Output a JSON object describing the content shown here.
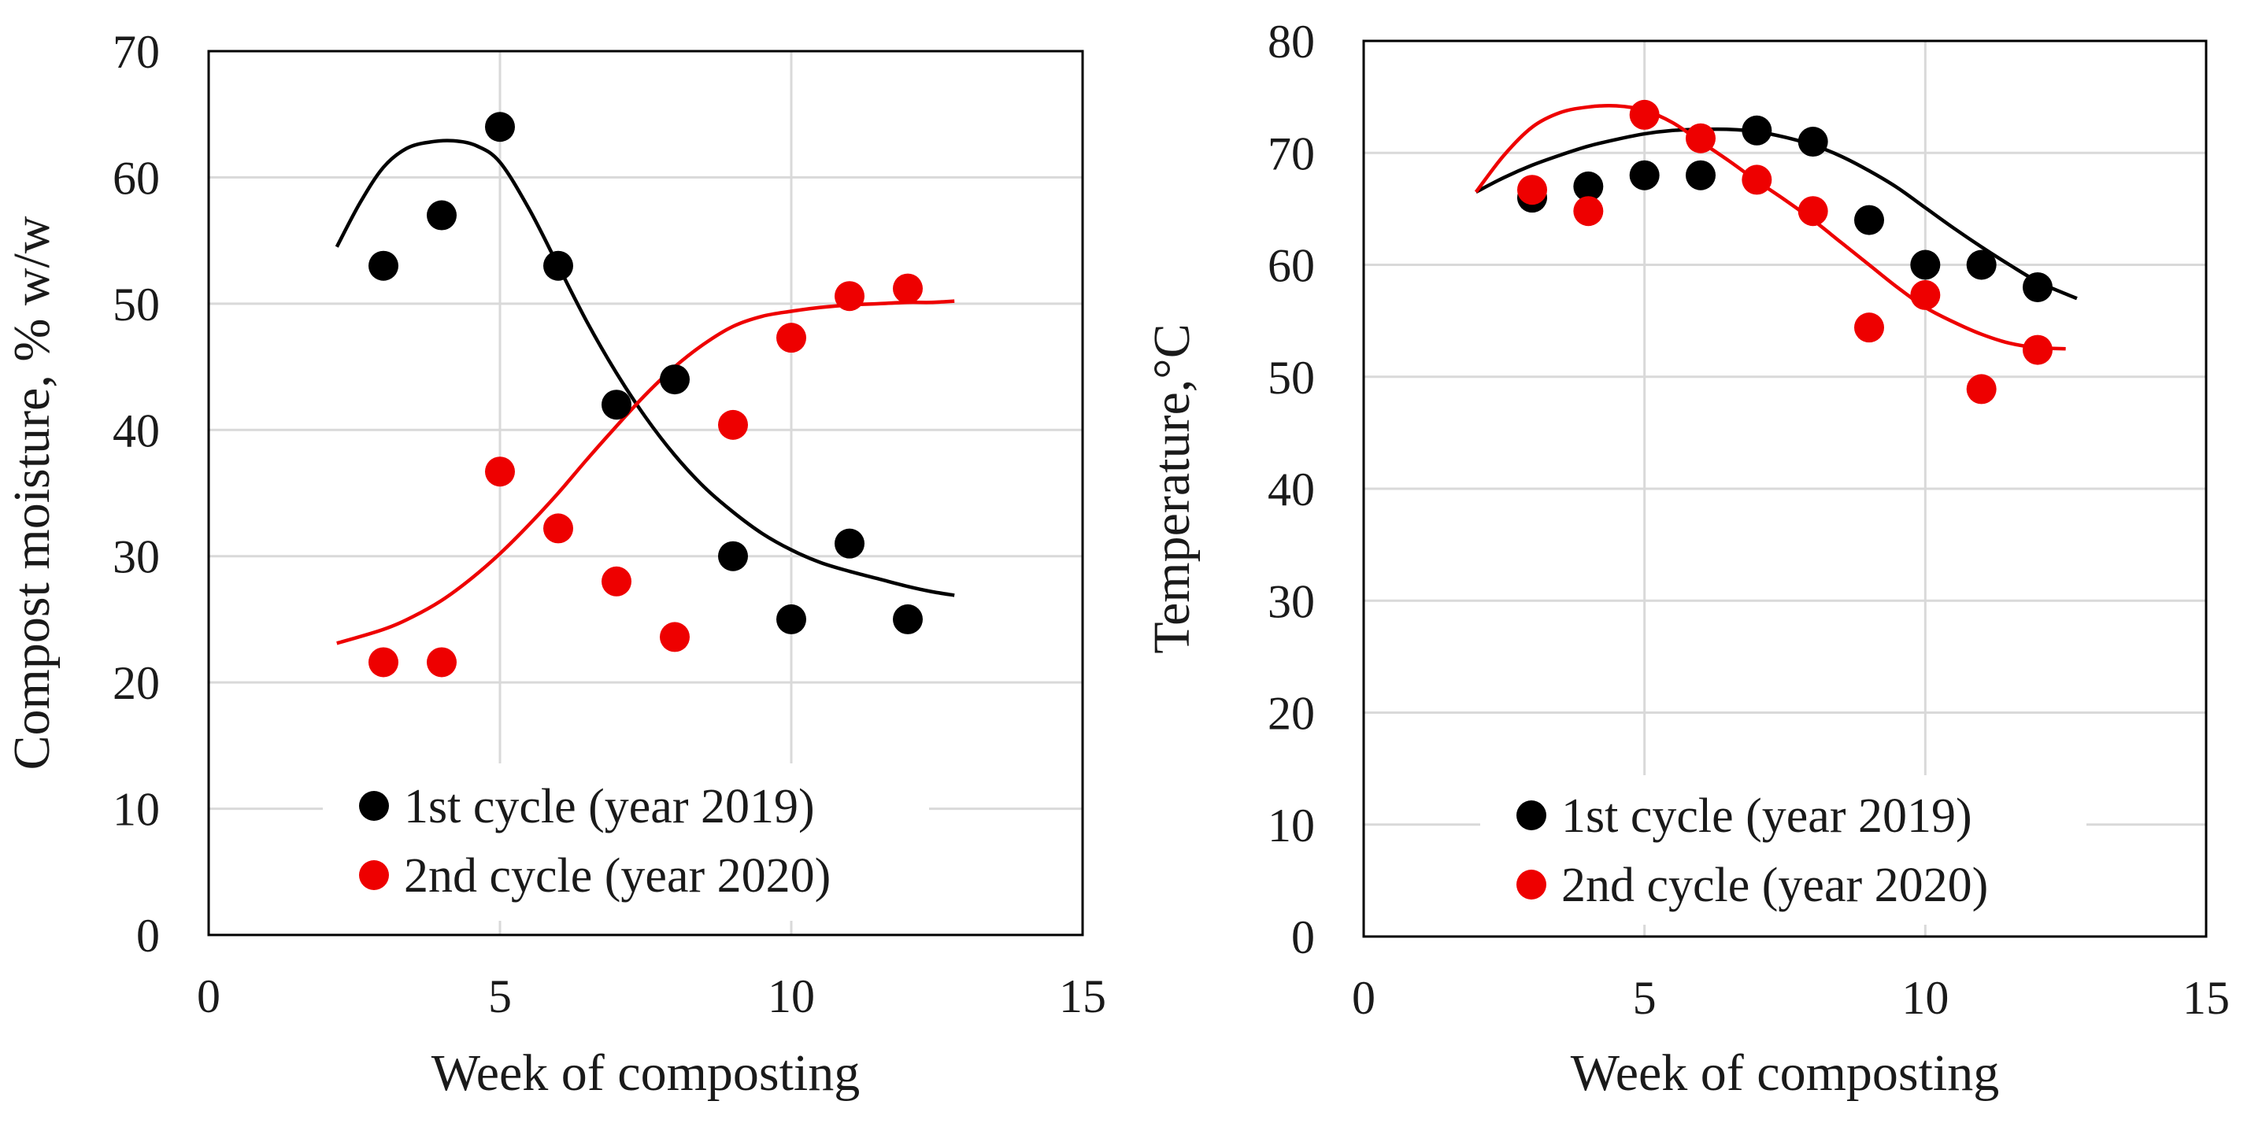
{
  "chart_data": [
    {
      "id": "moisture",
      "type": "scatter",
      "title": "",
      "xlabel": "Week of composting",
      "ylabel": "Compost moisture, % w/w",
      "xlim": [
        0,
        15
      ],
      "ylim": [
        0,
        70
      ],
      "xticks": [
        0,
        5,
        10,
        15
      ],
      "yticks": [
        0,
        10,
        20,
        30,
        40,
        50,
        60,
        70
      ],
      "grid": true,
      "legend_position": "bottom-center",
      "series": [
        {
          "name": "1st cycle (year 2019)",
          "color": "#000000",
          "x": [
            3,
            4,
            5,
            6,
            7,
            8,
            9,
            10,
            11,
            12
          ],
          "y": [
            53,
            57,
            64,
            53,
            42,
            44,
            30,
            25,
            31,
            25
          ],
          "trend": {
            "x": [
              2.2,
              2.6,
              3.0,
              3.4,
              3.8,
              4.2,
              4.6,
              5.0,
              5.5,
              6.0,
              6.5,
              7.0,
              7.5,
              8.0,
              8.5,
              9.0,
              9.5,
              10.0,
              10.5,
              11.0,
              11.5,
              12.0,
              12.4,
              12.8
            ],
            "y": [
              54.5,
              58.0,
              60.8,
              62.3,
              62.8,
              62.9,
              62.5,
              61.2,
              57.5,
              53.0,
              48.5,
              44.5,
              41.0,
              38.0,
              35.5,
              33.5,
              31.8,
              30.5,
              29.5,
              28.8,
              28.2,
              27.6,
              27.2,
              26.9
            ]
          }
        },
        {
          "name": "2nd cycle (year 2020)",
          "color": "#ee0000",
          "x": [
            3,
            4,
            5,
            6,
            7,
            8,
            9,
            10,
            11,
            12
          ],
          "y": [
            21.6,
            21.6,
            36.7,
            32.2,
            28.0,
            23.6,
            40.4,
            47.3,
            50.6,
            51.2
          ],
          "trend": {
            "x": [
              2.2,
              3.0,
              3.5,
              4.0,
              4.5,
              5.0,
              5.5,
              6.0,
              6.5,
              7.0,
              7.5,
              8.0,
              8.5,
              9.0,
              9.5,
              10.0,
              10.5,
              11.0,
              11.5,
              12.0,
              12.4,
              12.8
            ],
            "y": [
              23.1,
              24.2,
              25.2,
              26.5,
              28.2,
              30.2,
              32.5,
              35.0,
              37.7,
              40.3,
              42.8,
              45.0,
              46.8,
              48.2,
              49.0,
              49.4,
              49.7,
              49.9,
              50.0,
              50.1,
              50.1,
              50.2
            ]
          }
        }
      ]
    },
    {
      "id": "temperature",
      "type": "scatter",
      "title": "",
      "xlabel": "Week of composting",
      "ylabel": "Temperature,°C",
      "xlim": [
        0,
        15
      ],
      "ylim": [
        0,
        80
      ],
      "xticks": [
        0,
        5,
        10,
        15
      ],
      "yticks": [
        0,
        10,
        20,
        30,
        40,
        50,
        60,
        70,
        80
      ],
      "grid": true,
      "legend_position": "bottom-center",
      "series": [
        {
          "name": "1st cycle (year 2019)",
          "color": "#000000",
          "x": [
            3,
            4,
            5,
            6,
            7,
            8,
            9,
            10,
            11,
            12
          ],
          "y": [
            66,
            67,
            68,
            68,
            72,
            71,
            64,
            60,
            60,
            58
          ],
          "trend": {
            "x": [
              2.0,
              2.5,
              3.0,
              3.5,
              4.0,
              4.5,
              5.0,
              5.5,
              6.0,
              6.5,
              7.0,
              7.5,
              8.0,
              8.5,
              9.0,
              9.5,
              10.0,
              10.5,
              11.0,
              11.5,
              12.0,
              12.5,
              12.7
            ],
            "y": [
              66.5,
              67.8,
              68.9,
              69.8,
              70.6,
              71.2,
              71.7,
              72.0,
              72.1,
              72.1,
              71.9,
              71.4,
              70.7,
              69.7,
              68.4,
              66.9,
              65.1,
              63.3,
              61.6,
              60.0,
              58.5,
              57.4,
              57.0
            ]
          }
        },
        {
          "name": "2nd cycle (year 2020)",
          "color": "#ee0000",
          "x": [
            3,
            4,
            5,
            6,
            7,
            8,
            9,
            10,
            11,
            12
          ],
          "y": [
            66.7,
            64.8,
            73.4,
            71.3,
            67.6,
            64.8,
            54.4,
            57.3,
            48.9,
            52.4
          ],
          "trend": {
            "x": [
              2.0,
              2.5,
              3.0,
              3.5,
              4.0,
              4.5,
              5.0,
              5.5,
              6.0,
              6.5,
              7.0,
              7.5,
              8.0,
              8.5,
              9.0,
              9.5,
              10.0,
              10.5,
              11.0,
              11.5,
              12.0,
              12.5
            ],
            "y": [
              66.5,
              69.8,
              72.3,
              73.6,
              74.1,
              74.2,
              73.8,
              72.7,
              71.0,
              69.3,
              67.5,
              65.8,
              64.0,
              62.0,
              60.0,
              58.0,
              56.2,
              54.9,
              53.8,
              53.0,
              52.6,
              52.5
            ]
          }
        }
      ]
    }
  ]
}
